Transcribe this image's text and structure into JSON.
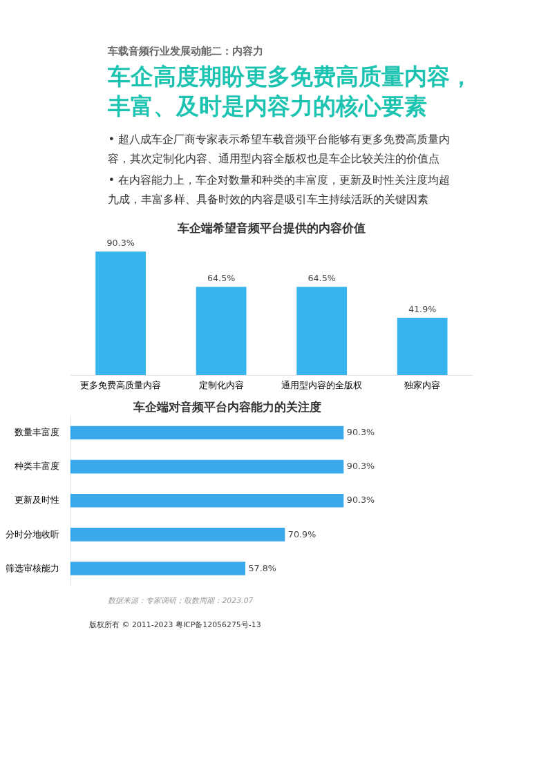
{
  "chart_data": [
    {
      "type": "bar",
      "title": "车企端希望音频平台提供的内容价值",
      "categories": [
        "更多免费高质量内容",
        "定制化内容",
        "通用型内容的全版权",
        "独家内容"
      ],
      "values": [
        90.3,
        64.5,
        64.5,
        41.9
      ],
      "value_labels": [
        "90.3%",
        "64.5%",
        "64.5%",
        "41.9%"
      ],
      "color": "#36b4ee",
      "grid": false,
      "annotations": [
        "车载音频行业发展动能二：内容力",
        "车企高度期盼更多免费高质量内容，",
        "丰富、及时是内容力的核心要素",
        "• 超八成车企厂商专家表示希望车载音频平台能够有更多免费高质量内",
        "   容，其次定制化内容、通用型内容全版权也是车企比较关注的价值点",
        "• 在内容能力上，车企对数量和种类的丰富度，更新及时性关注度均超",
        "   九成，丰富多样、具备时效的内容是吸引车主持续活跃的关键因素"
      ]
    },
    {
      "type": "bar",
      "orientation": "horizontal",
      "title": "车企端对音频平台内容能力的关注度",
      "categories": [
        "数量丰富度",
        "种类丰富度",
        "更新及时性",
        "分时分地收听",
        "筛选审核能力"
      ],
      "values": [
        90.3,
        90.3,
        90.3,
        70.9,
        57.8
      ],
      "value_labels": [
        "90.3%",
        "90.3%",
        "90.3%",
        "70.9%",
        "57.8%"
      ],
      "color": "#3aa9ec",
      "grid": false,
      "annotations": [
        "数据来源：专家调研；取数周期：2023.07",
        "版权所有 © 2011-2023 粤ICP备12056275号-13"
      ]
    }
  ]
}
